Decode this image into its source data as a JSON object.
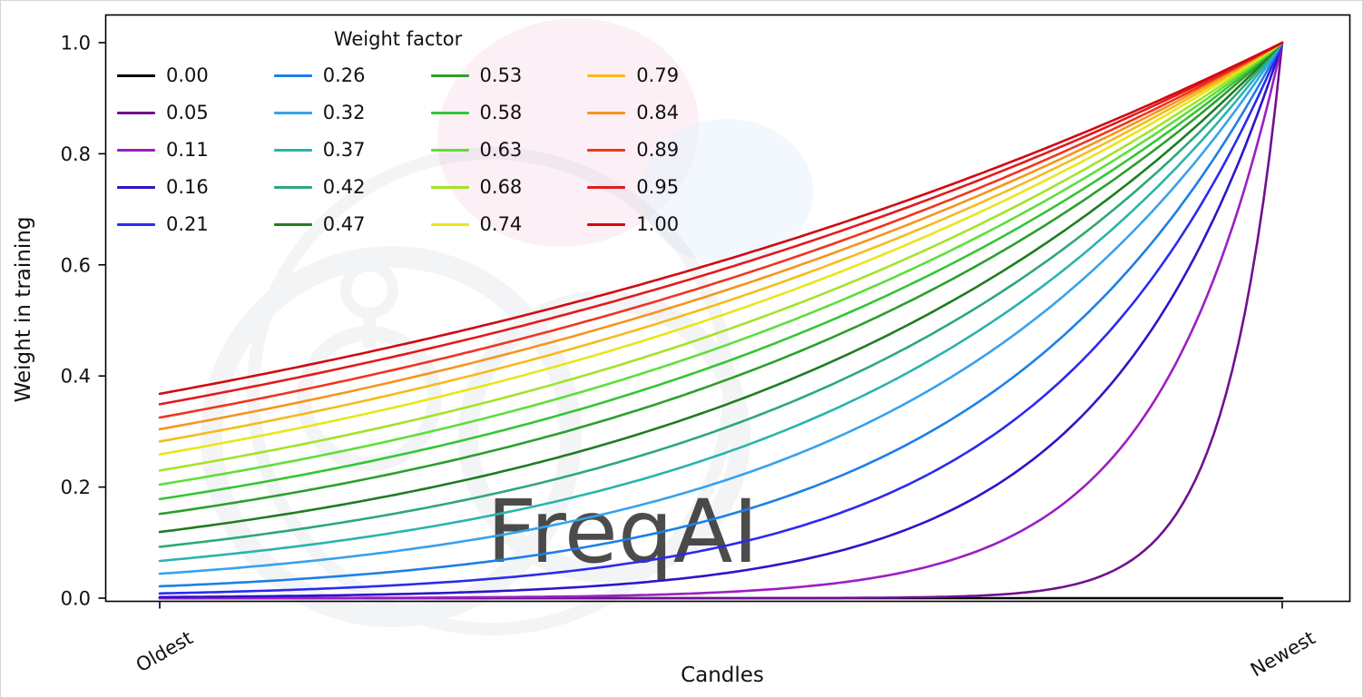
{
  "watermark": {
    "text": "FreqAI"
  },
  "chart_data": {
    "type": "line",
    "title": "",
    "xlabel": "Candles",
    "ylabel": "Weight in training",
    "legend_title": "Weight factor",
    "legend_position": "upper left",
    "legend_columns": 4,
    "grid": false,
    "ylim": [
      0,
      1
    ],
    "y_ticks": [
      "0.0",
      "0.2",
      "0.4",
      "0.6",
      "0.8",
      "1.0"
    ],
    "x_ticks": [
      {
        "label": "Oldest",
        "t": 0
      },
      {
        "label": "Newest",
        "t": 1
      }
    ],
    "formula": "weight(x) = exp(-(1 - x) / weight_factor), x normalized 0 (oldest) to 1 (newest); weight_factor 0 gives 0 everywhere",
    "x_samples": [
      0,
      0.1,
      0.2,
      0.3,
      0.4,
      0.5,
      0.6,
      0.7,
      0.8,
      0.9,
      1.0
    ],
    "series": [
      {
        "label": "0.00",
        "weight_factor": 0.0,
        "color": "#000000",
        "values": [
          0,
          0,
          0,
          0,
          0,
          0,
          0,
          0,
          0,
          0,
          0
        ]
      },
      {
        "label": "0.05",
        "weight_factor": 0.05,
        "color": "#70108f",
        "values": [
          0,
          0,
          0,
          0,
          0,
          0,
          0.0003,
          0.0025,
          0.0183,
          0.1353,
          1
        ]
      },
      {
        "label": "0.11",
        "weight_factor": 0.11,
        "color": "#9b1fc1",
        "values": [
          0.0001,
          0.0003,
          0.0007,
          0.0017,
          0.0043,
          0.0106,
          0.0264,
          0.0654,
          0.1624,
          0.4029,
          1
        ]
      },
      {
        "label": "0.16",
        "weight_factor": 0.16,
        "color": "#2b16c8",
        "values": [
          0.0019,
          0.0036,
          0.0067,
          0.0126,
          0.0235,
          0.0439,
          0.0821,
          0.1534,
          0.2865,
          0.5353,
          1
        ]
      },
      {
        "label": "0.21",
        "weight_factor": 0.21,
        "color": "#2b2bef",
        "values": [
          0.0086,
          0.0138,
          0.0222,
          0.0357,
          0.0574,
          0.0924,
          0.1488,
          0.2397,
          0.3858,
          0.6213,
          1
        ]
      },
      {
        "label": "0.26",
        "weight_factor": 0.26,
        "color": "#1d7fe8",
        "values": [
          0.0213,
          0.0313,
          0.0461,
          0.0677,
          0.0995,
          0.1461,
          0.2147,
          0.3155,
          0.4634,
          0.6807,
          1
        ]
      },
      {
        "label": "0.32",
        "weight_factor": 0.32,
        "color": "#38a1ec",
        "values": [
          0.0439,
          0.06,
          0.0821,
          0.1121,
          0.1534,
          0.2096,
          0.2865,
          0.3916,
          0.5353,
          0.7316,
          1
        ]
      },
      {
        "label": "0.37",
        "weight_factor": 0.37,
        "color": "#29b4ac",
        "values": [
          0.067,
          0.0879,
          0.1151,
          0.1508,
          0.1976,
          0.2589,
          0.3392,
          0.4445,
          0.5825,
          0.7632,
          1
        ]
      },
      {
        "label": "0.42",
        "weight_factor": 0.42,
        "color": "#2ea878",
        "values": [
          0.0924,
          0.1173,
          0.1488,
          0.1889,
          0.2397,
          0.3041,
          0.3858,
          0.4895,
          0.6213,
          0.7881,
          1
        ]
      },
      {
        "label": "0.47",
        "weight_factor": 0.47,
        "color": "#1d7d21",
        "values": [
          0.1191,
          0.1474,
          0.1823,
          0.2255,
          0.279,
          0.3452,
          0.427,
          0.5282,
          0.6535,
          0.8083,
          1
        ]
      },
      {
        "label": "0.53",
        "weight_factor": 0.53,
        "color": "#2d9e2d",
        "values": [
          0.1516,
          0.183,
          0.2211,
          0.2669,
          0.3223,
          0.3893,
          0.4701,
          0.5678,
          0.6857,
          0.828,
          1
        ]
      },
      {
        "label": "0.58",
        "weight_factor": 0.58,
        "color": "#35c535",
        "values": [
          0.1783,
          0.2119,
          0.2518,
          0.2991,
          0.3554,
          0.4223,
          0.5017,
          0.5962,
          0.7083,
          0.8416,
          1
        ]
      },
      {
        "label": "0.63",
        "weight_factor": 0.63,
        "color": "#5ddf3c",
        "values": [
          0.2044,
          0.2397,
          0.2809,
          0.3292,
          0.3858,
          0.4522,
          0.53,
          0.6213,
          0.728,
          0.8533,
          1
        ]
      },
      {
        "label": "0.68",
        "weight_factor": 0.68,
        "color": "#a3e32a",
        "values": [
          0.2298,
          0.2662,
          0.3084,
          0.3572,
          0.4138,
          0.4794,
          0.5553,
          0.6433,
          0.7452,
          0.8632,
          1
        ]
      },
      {
        "label": "0.74",
        "weight_factor": 0.74,
        "color": "#e9e619",
        "values": [
          0.2589,
          0.2963,
          0.3392,
          0.3883,
          0.4445,
          0.5088,
          0.5825,
          0.6667,
          0.7632,
          0.8736,
          1
        ]
      },
      {
        "label": "0.79",
        "weight_factor": 0.79,
        "color": "#f6bb1b",
        "values": [
          0.282,
          0.3201,
          0.3633,
          0.4123,
          0.4679,
          0.5311,
          0.6027,
          0.6841,
          0.7763,
          0.8811,
          1
        ]
      },
      {
        "label": "0.84",
        "weight_factor": 0.84,
        "color": "#f7941d",
        "values": [
          0.3041,
          0.3425,
          0.3858,
          0.4346,
          0.4895,
          0.5515,
          0.6213,
          0.6997,
          0.7881,
          0.8878,
          1
        ]
      },
      {
        "label": "0.89",
        "weight_factor": 0.89,
        "color": "#f0351f",
        "values": [
          0.3251,
          0.3638,
          0.4071,
          0.4554,
          0.5096,
          0.5702,
          0.638,
          0.7139,
          0.7988,
          0.8937,
          1
        ]
      },
      {
        "label": "0.95",
        "weight_factor": 0.95,
        "color": "#e31a1c",
        "values": [
          0.349,
          0.3878,
          0.4308,
          0.4786,
          0.5318,
          0.5908,
          0.6563,
          0.7292,
          0.8102,
          0.9001,
          1
        ]
      },
      {
        "label": "1.00",
        "weight_factor": 1.0,
        "color": "#cf0a10",
        "values": [
          0.3679,
          0.4066,
          0.4493,
          0.4966,
          0.5488,
          0.6065,
          0.6703,
          0.7408,
          0.8187,
          0.9048,
          1
        ]
      }
    ]
  }
}
